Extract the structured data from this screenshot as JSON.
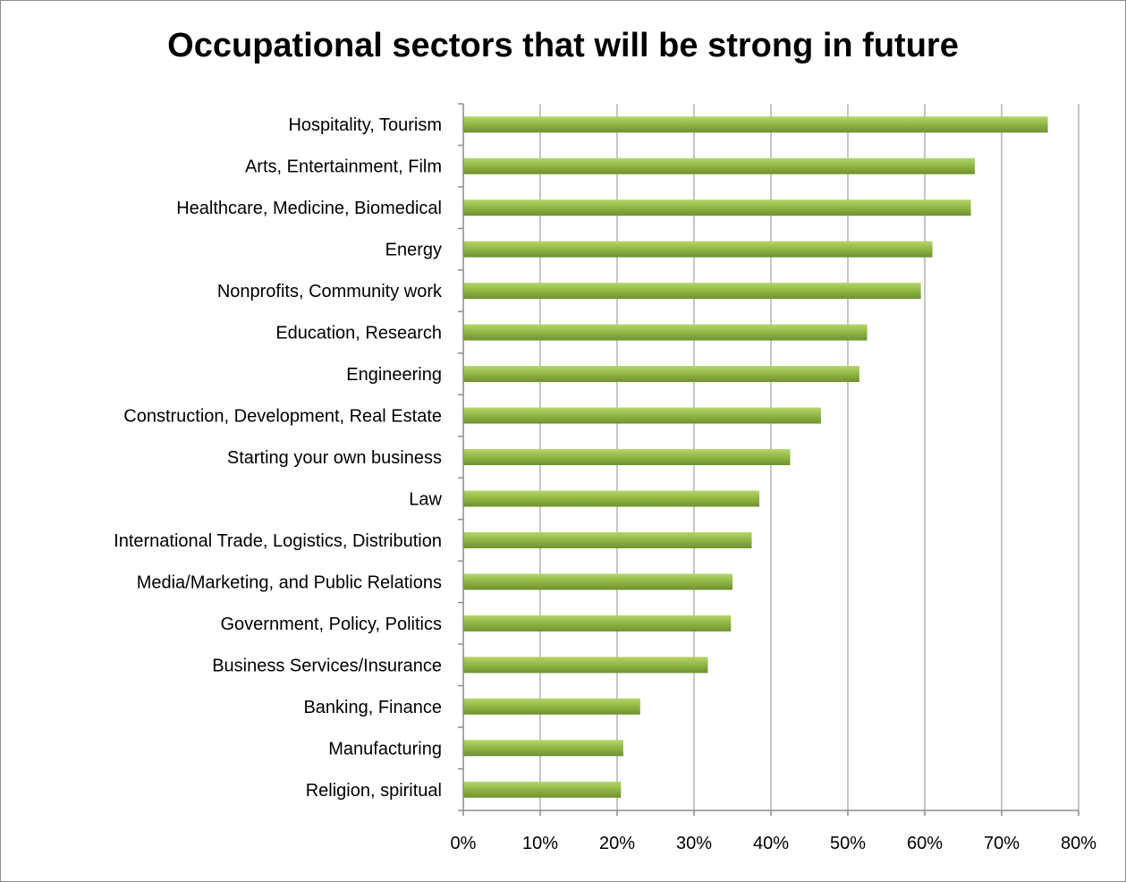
{
  "chart_data": {
    "type": "bar",
    "orientation": "horizontal",
    "title": "Occupational sectors that will be strong in future",
    "categories": [
      "Hospitality, Tourism",
      "Arts, Entertainment, Film",
      "Healthcare, Medicine, Biomedical",
      "Energy",
      "Nonprofits, Community work",
      "Education, Research",
      "Engineering",
      "Construction, Development, Real Estate",
      "Starting your own business",
      "Law",
      "International Trade, Logistics, Distribution",
      "Media/Marketing, and Public Relations",
      "Government, Policy, Politics",
      "Business Services/Insurance",
      "Banking, Finance",
      "Manufacturing",
      "Religion, spiritual"
    ],
    "values": [
      76,
      66.5,
      66,
      61,
      59.5,
      52.5,
      51.5,
      46.5,
      42.5,
      38.5,
      37.5,
      35,
      34.8,
      31.8,
      23,
      20.8,
      20.5
    ],
    "xlim": [
      0,
      80
    ],
    "xticks": [
      0,
      10,
      20,
      30,
      40,
      50,
      60,
      70,
      80
    ],
    "xtick_labels": [
      "0%",
      "10%",
      "20%",
      "30%",
      "40%",
      "50%",
      "60%",
      "70%",
      "80%"
    ],
    "xlabel": "",
    "ylabel": "",
    "grid": "vertical",
    "legend": "none",
    "colors": {
      "bar_light": "#b5d56a",
      "bar_mid": "#8fb644",
      "bar_dark": "#6e9130",
      "grid": "#8c8c8c",
      "axis": "#8c8c8c"
    }
  }
}
